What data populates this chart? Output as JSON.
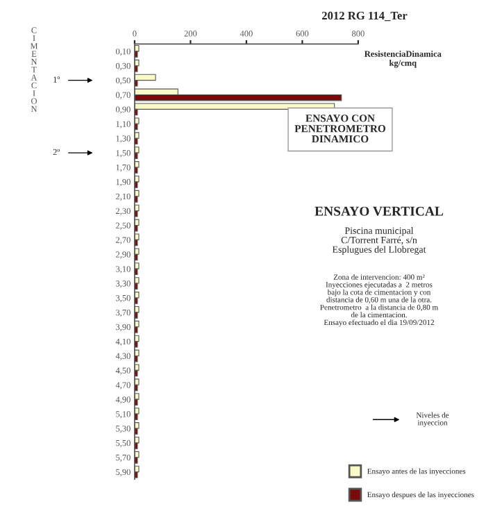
{
  "chart_data": {
    "type": "bar",
    "orientation": "horizontal",
    "title": "2012 RG 114_Ter",
    "xlabel": "ResistenciaDinamica\nkg/cmq",
    "ylabel": "C\nI\nM\nE\nN\nT\nA\nC\nI\nO\nN",
    "categories": [
      "0,10",
      "0,30",
      "0,50",
      "0,70",
      "0,90",
      "1,10",
      "1,30",
      "1,50",
      "1,70",
      "1,90",
      "2,10",
      "2,30",
      "2,50",
      "2,70",
      "2,90",
      "3,10",
      "3,30",
      "3,50",
      "3,70",
      "3,90",
      "4,10",
      "4,30",
      "4,50",
      "4,70",
      "4,90",
      "5,10",
      "5,30",
      "5,50",
      "5,70",
      "5,90"
    ],
    "series": [
      {
        "name": "Ensayo antes de las inyecciones",
        "color": "#fafac8",
        "values": [
          15,
          15,
          75,
          155,
          715,
          15,
          15,
          15,
          15,
          15,
          15,
          15,
          15,
          15,
          15,
          15,
          15,
          15,
          15,
          15,
          15,
          15,
          15,
          15,
          15,
          15,
          15,
          15,
          15,
          15
        ]
      },
      {
        "name": "Ensayo despues de las inyecciones",
        "color": "#7a0a0a",
        "values": [
          10,
          10,
          10,
          740,
          10,
          10,
          10,
          10,
          10,
          10,
          10,
          10,
          10,
          10,
          10,
          10,
          10,
          10,
          10,
          10,
          10,
          10,
          10,
          10,
          10,
          10,
          10,
          10,
          10,
          10
        ]
      }
    ],
    "xlim": [
      0,
      800
    ],
    "xticks": [
      0,
      200,
      400,
      600,
      800
    ],
    "grid": false,
    "legend": "bottom right",
    "annotations": [
      "1º",
      "2º",
      "ENSAYO CON\nPENETROMETRO\nDINAMICO",
      "ENSAYO VERTICAL",
      "Piscina municipal\nC/Torrent Farré, s/n\nEsplugues del Llobregat",
      "Zona de intervencion: 400 m²\nInyecciones ejecutadas a  2 metros\nbajo la cota de cimentacion y con\ndistancia de 0,60 m una de la otra.\nPenetrometro  a la distancia de 0,80 m\nde la cimentacion.\nEnsayo efectuado el dia 19/09/2012",
      "Niveles de\ninyeccion"
    ]
  }
}
